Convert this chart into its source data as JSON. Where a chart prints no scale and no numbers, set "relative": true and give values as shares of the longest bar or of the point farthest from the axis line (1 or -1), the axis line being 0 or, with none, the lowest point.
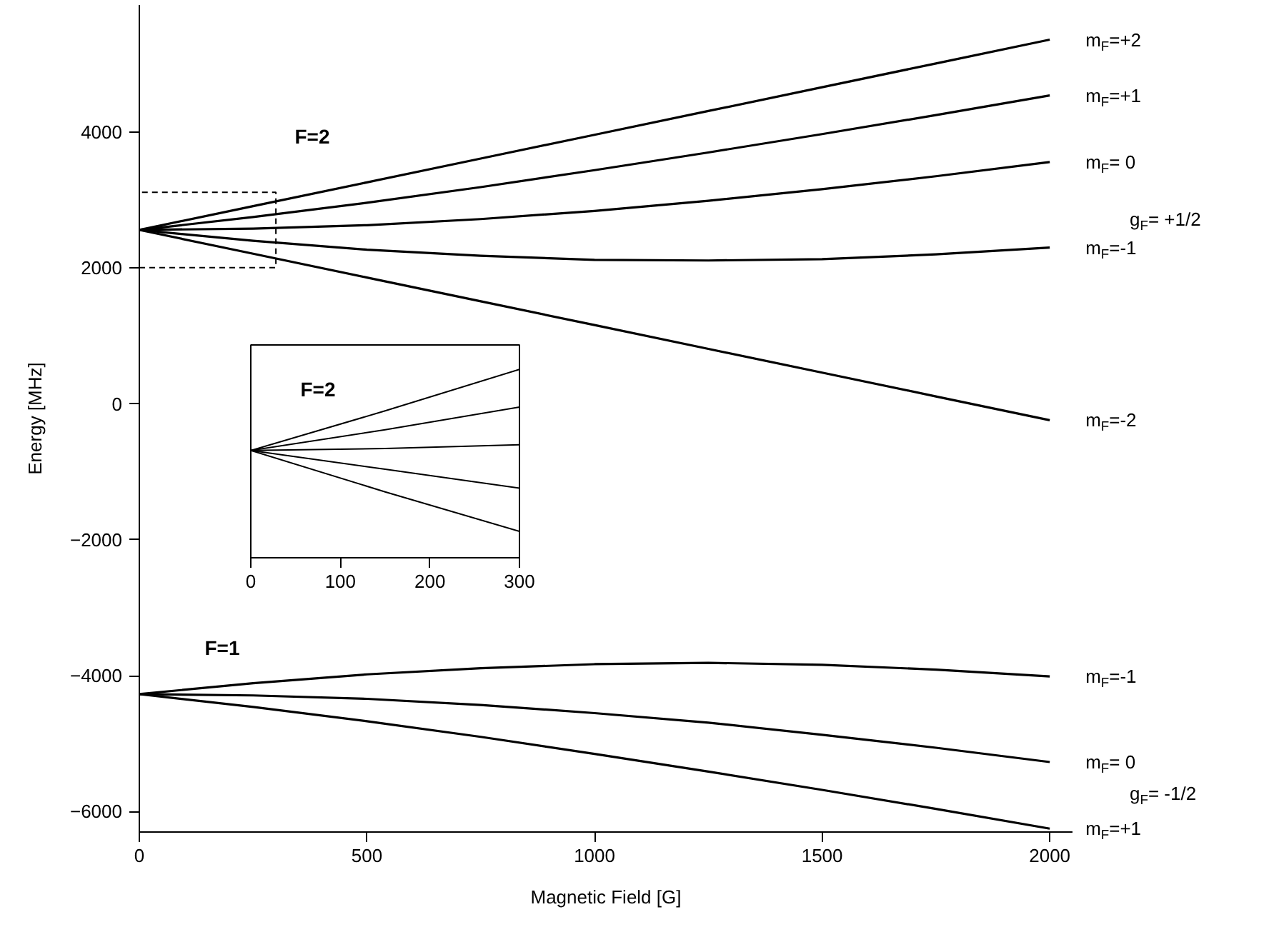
{
  "chart_data": [
    {
      "type": "line",
      "xlabel": "Magnetic Field [G]",
      "ylabel": "Energy [MHz]",
      "x": [
        0,
        250,
        500,
        750,
        1000,
        1250,
        1500,
        1750,
        2000
      ],
      "xlim": [
        0,
        2050
      ],
      "ylim": [
        -6300,
        5870
      ],
      "xticks": [
        0,
        500,
        1000,
        1500,
        2000
      ],
      "yticks": [
        -6000,
        -4000,
        -2000,
        0,
        2000,
        4000
      ],
      "series": [
        {
          "name": "m$_{F}$=+2",
          "color": "#000000",
          "values": [
            2560,
            2910,
            3260,
            3610,
            3960,
            4310,
            4660,
            5010,
            5360
          ]
        },
        {
          "name": "m$_{F}$=+1",
          "color": "#000000",
          "values": [
            2560,
            2750,
            2960,
            3190,
            3440,
            3700,
            3970,
            4250,
            4540
          ]
        },
        {
          "name": "m$_{F}$= 0",
          "color": "#000000",
          "values": [
            2560,
            2580,
            2630,
            2720,
            2840,
            2990,
            3160,
            3350,
            3560
          ]
        },
        {
          "name": "m$_{F}$=-1",
          "color": "#000000",
          "values": [
            2560,
            2400,
            2270,
            2180,
            2120,
            2110,
            2130,
            2200,
            2300
          ]
        },
        {
          "name": "m$_{F}$=-2",
          "color": "#000000",
          "values": [
            2560,
            2210,
            1860,
            1510,
            1160,
            810,
            460,
            110,
            -240
          ]
        },
        {
          "name": "m$_{F}$=-1",
          "color": "#000000",
          "values": [
            -4270,
            -4110,
            -3980,
            -3890,
            -3830,
            -3810,
            -3840,
            -3910,
            -4010
          ]
        },
        {
          "name": "m$_{F}$= 0",
          "color": "#000000",
          "values": [
            -4270,
            -4290,
            -4340,
            -4430,
            -4550,
            -4690,
            -4870,
            -5060,
            -5270
          ]
        },
        {
          "name": "m$_{F}$=+1",
          "color": "#000000",
          "values": [
            -4270,
            -4460,
            -4670,
            -4900,
            -5150,
            -5410,
            -5680,
            -5960,
            -6250
          ]
        }
      ],
      "annotations": [
        "F=2",
        "F=1",
        "g$_{F}$= +1/2",
        "g$_{F}$= -1/2"
      ]
    },
    {
      "type": "line",
      "x": [
        0,
        150,
        300
      ],
      "xlim": [
        0,
        300
      ],
      "xticks": [
        0,
        100,
        200,
        300
      ],
      "tick_labels": "x",
      "relative": true,
      "series": [
        {
          "color": "#000000",
          "values": [
            0.57,
            0.78,
            1
          ]
        },
        {
          "color": "#000000",
          "values": [
            0.57,
            0.68,
            0.8
          ]
        },
        {
          "color": "#000000",
          "values": [
            0.57,
            0.58,
            0.6
          ]
        },
        {
          "color": "#000000",
          "values": [
            0.57,
            0.47,
            0.37
          ]
        },
        {
          "color": "#000000",
          "values": [
            0.57,
            0.35,
            0.14
          ]
        }
      ],
      "annotations": [
        "F=2"
      ]
    }
  ]
}
